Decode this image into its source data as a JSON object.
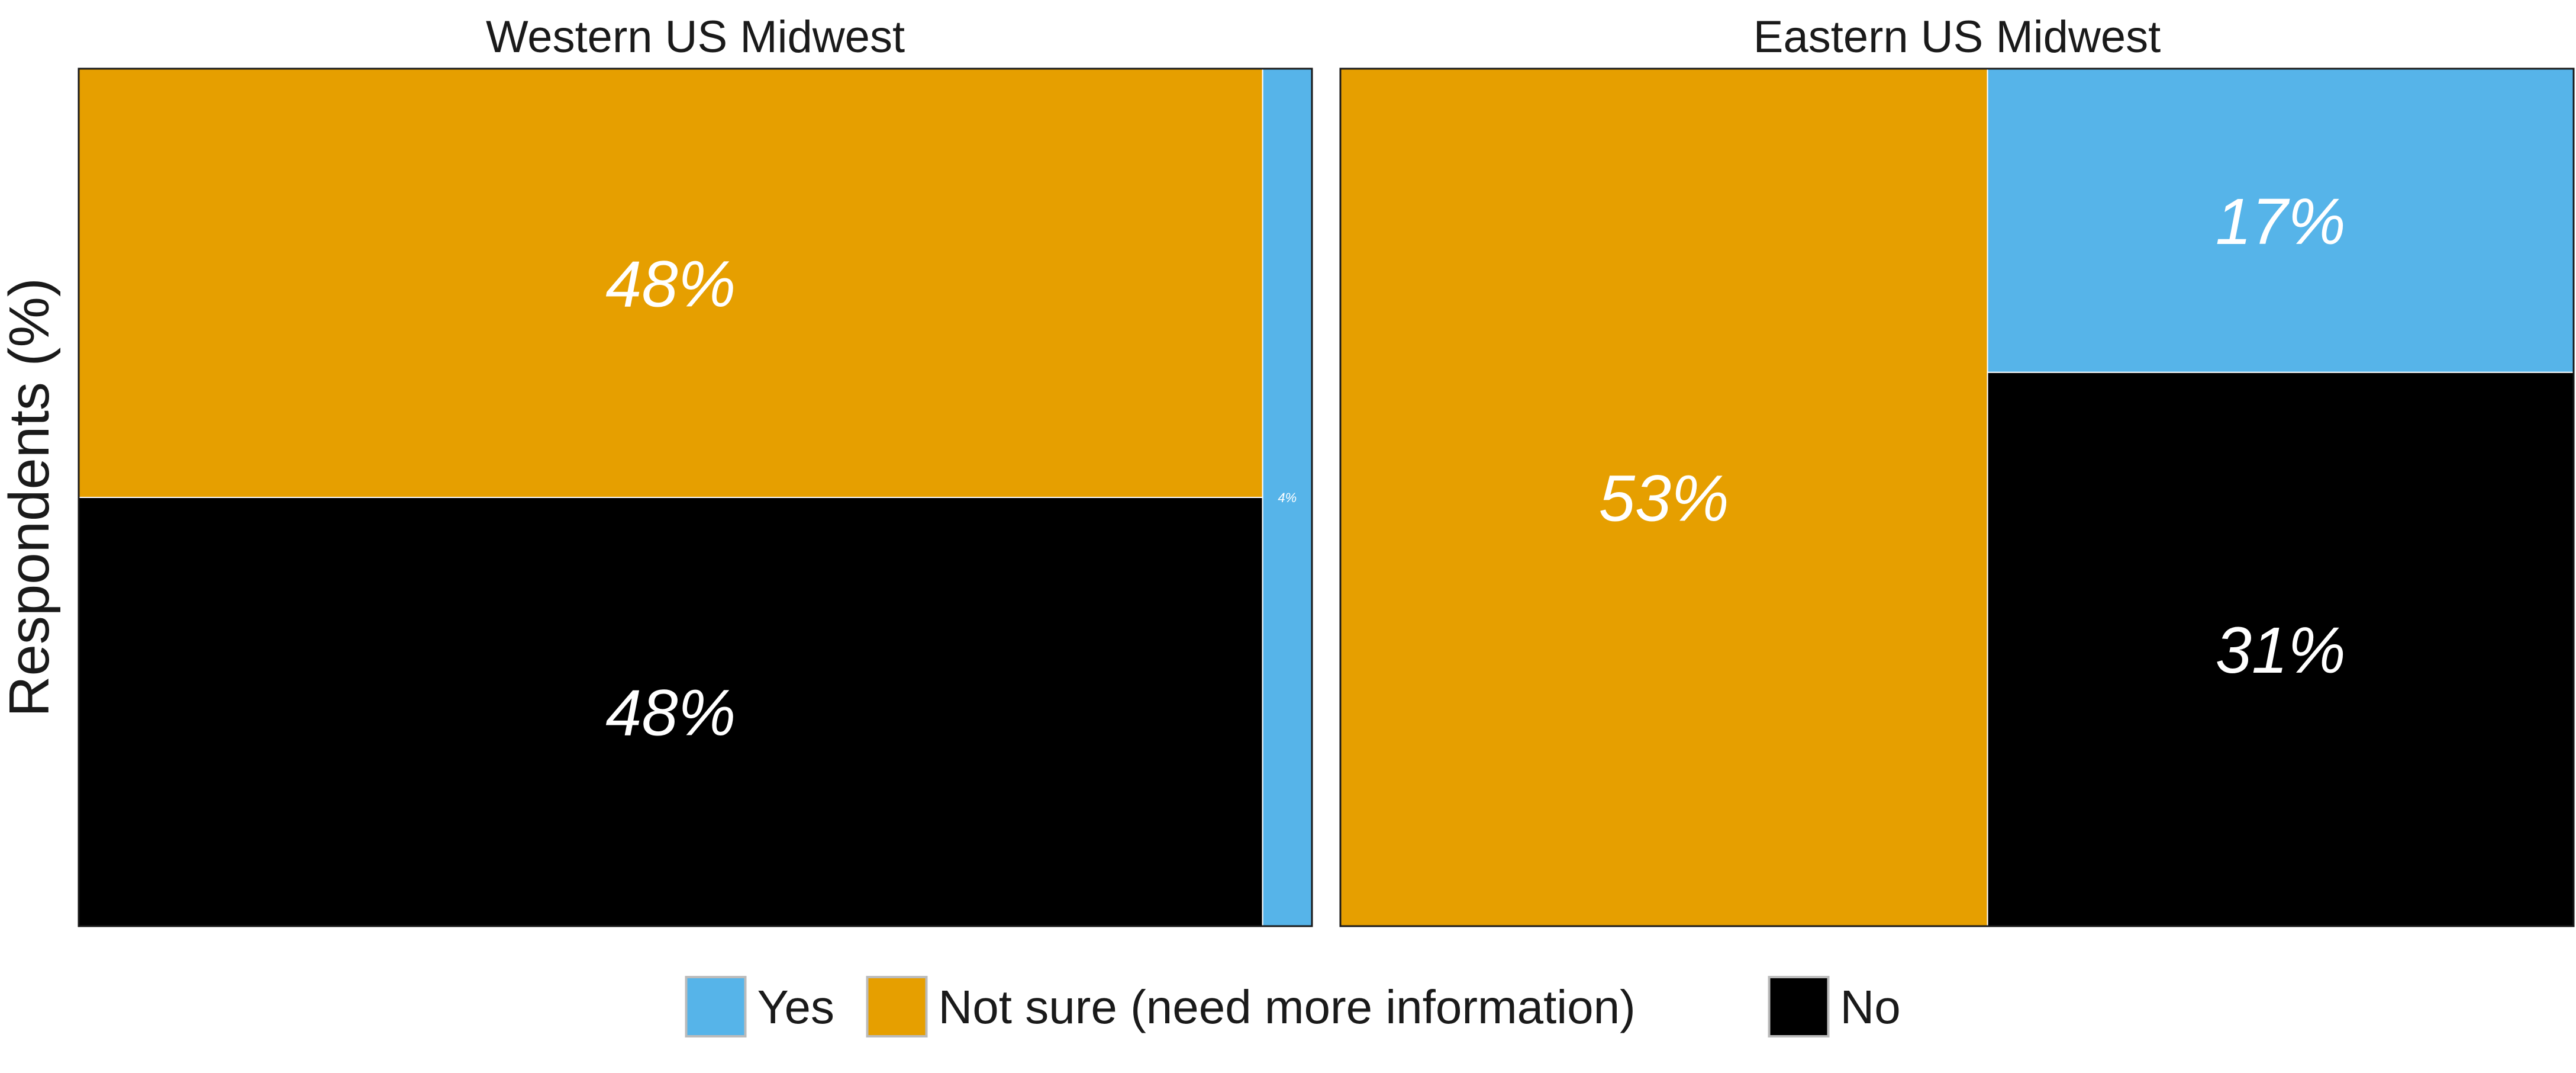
{
  "chart_data": {
    "type": "mosaic",
    "ylabel": "Respondents (%)",
    "categories": [
      "Yes",
      "Not sure (need more information)",
      "No"
    ],
    "colors": {
      "Yes": "#56b4e9",
      "Not sure (need more information)": "#e69f00",
      "No": "#000000"
    },
    "panels": [
      {
        "title": "Western US Midwest",
        "columns": [
          {
            "width": 96,
            "segments": [
              {
                "category": "Not sure (need more information)",
                "value": 48,
                "label": "48%"
              },
              {
                "category": "No",
                "value": 48,
                "label": "48%"
              }
            ]
          },
          {
            "width": 4,
            "segments": [
              {
                "category": "Yes",
                "value": 4,
                "label": "4%"
              }
            ]
          }
        ]
      },
      {
        "title": "Eastern US Midwest",
        "columns": [
          {
            "width": 53,
            "segments": [
              {
                "category": "Not sure (need more information)",
                "value": 53,
                "label": "53%"
              }
            ]
          },
          {
            "width": 48,
            "segments": [
              {
                "category": "Yes",
                "value": 17,
                "label": "17%"
              },
              {
                "category": "No",
                "value": 31,
                "label": "31%"
              }
            ]
          }
        ]
      }
    ],
    "legend": {
      "position": "bottom",
      "entries": [
        "Yes",
        "Not sure (need more information)",
        "No"
      ]
    }
  }
}
